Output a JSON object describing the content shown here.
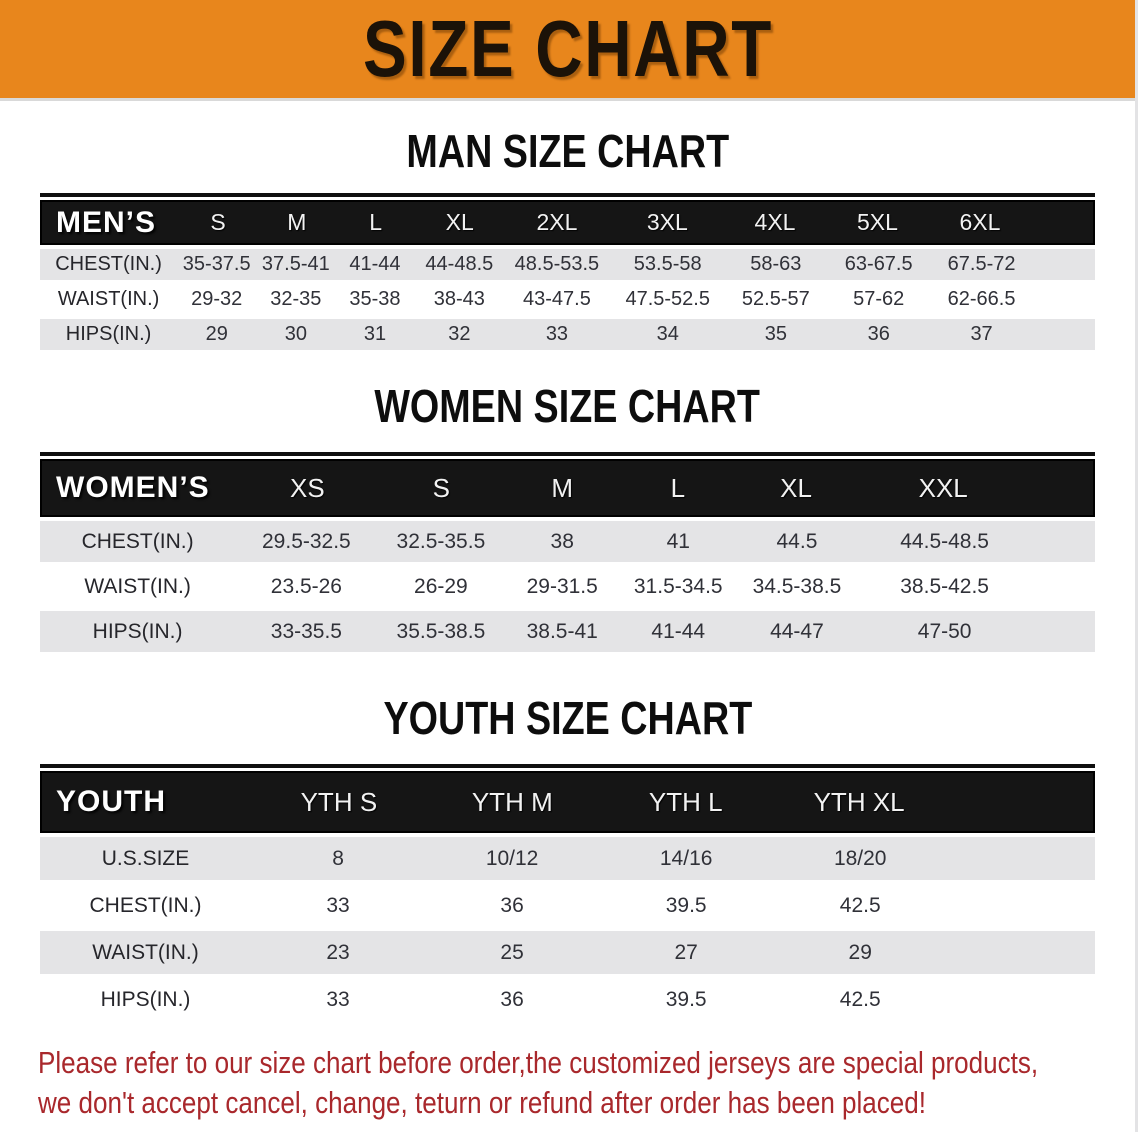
{
  "colors": {
    "banner_orange": "#E8861C",
    "header_black": "#151515",
    "stripe_gray": "#E4E4E6",
    "disclaimer_red": "#A9282C"
  },
  "banner": {
    "title": "SIZE CHART"
  },
  "sections": [
    {
      "heading": "MAN SIZE CHART",
      "table": {
        "corner": "MEN’S",
        "columns": [
          "S",
          "M",
          "L",
          "XL",
          "2XL",
          "3XL",
          "4XL",
          "5XL",
          "6XL"
        ],
        "rows": [
          {
            "label": "CHEST(IN.)",
            "values": [
              "35-37.5",
              "37.5-41",
              "41-44",
              "44-48.5",
              "48.5-53.5",
              "53.5-58",
              "58-63",
              "63-67.5",
              "67.5-72"
            ]
          },
          {
            "label": "WAIST(IN.)",
            "values": [
              "29-32",
              "32-35",
              "35-38",
              "38-43",
              "43-47.5",
              "47.5-52.5",
              "52.5-57",
              "57-62",
              "62-66.5"
            ]
          },
          {
            "label": "HIPS(IN.)",
            "values": [
              "29",
              "30",
              "31",
              "32",
              "33",
              "34",
              "35",
              "36",
              "37"
            ]
          }
        ]
      }
    },
    {
      "heading": "WOMEN SIZE CHART",
      "table": {
        "corner": "WOMEN’S",
        "columns": [
          "XS",
          "S",
          "M",
          "L",
          "XL",
          "XXL"
        ],
        "rows": [
          {
            "label": "CHEST(IN.)",
            "values": [
              "29.5-32.5",
              "32.5-35.5",
              "38",
              "41",
              "44.5",
              "44.5-48.5"
            ]
          },
          {
            "label": "WAIST(IN.)",
            "values": [
              "23.5-26",
              "26-29",
              "29-31.5",
              "31.5-34.5",
              "34.5-38.5",
              "38.5-42.5"
            ]
          },
          {
            "label": "HIPS(IN.)",
            "values": [
              "33-35.5",
              "35.5-38.5",
              "38.5-41",
              "41-44",
              "44-47",
              "47-50"
            ]
          }
        ]
      }
    },
    {
      "heading": "YOUTH SIZE CHART",
      "table": {
        "corner": "YOUTH",
        "columns": [
          "YTH S",
          "YTH M",
          "YTH L",
          "YTH XL"
        ],
        "rows": [
          {
            "label": "U.S.SIZE",
            "values": [
              "8",
              "10/12",
              "14/16",
              "18/20"
            ]
          },
          {
            "label": "CHEST(IN.)",
            "values": [
              "33",
              "36",
              "39.5",
              "42.5"
            ]
          },
          {
            "label": "WAIST(IN.)",
            "values": [
              "23",
              "25",
              "27",
              "29"
            ]
          },
          {
            "label": "HIPS(IN.)",
            "values": [
              "33",
              "36",
              "39.5",
              "42.5"
            ]
          }
        ]
      }
    }
  ],
  "footer": {
    "lines": [
      "Please refer to our size chart before order,the customized jerseys are special products,",
      "we don't accept cancel, change, teturn or refund after order has been placed!"
    ]
  }
}
